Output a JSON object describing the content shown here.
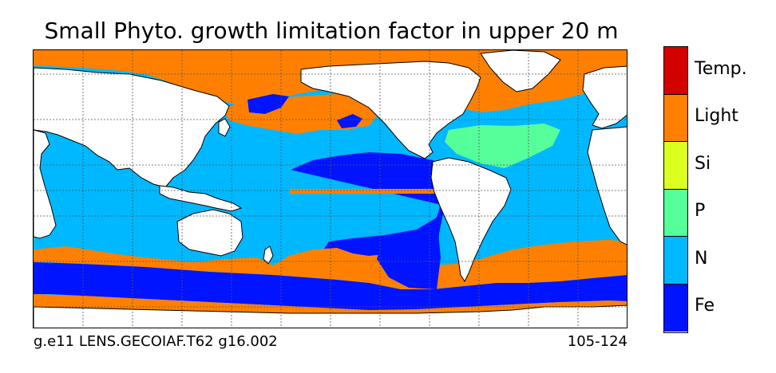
{
  "title": "Small Phyto. growth limitation factor in upper 20 m",
  "footer": {
    "case_name": "g.e11 LENS.GECOIAF.T62 g16.002",
    "years": "105-124"
  },
  "legend": {
    "categories": [
      {
        "label": "Temp.",
        "color": "#d40000"
      },
      {
        "label": "Light",
        "color": "#ff8000"
      },
      {
        "label": "Si",
        "color": "#dcff1f"
      },
      {
        "label": "P",
        "color": "#55ff99"
      },
      {
        "label": "N",
        "color": "#00b8ff"
      },
      {
        "label": "Fe",
        "color": "#0014ff"
      }
    ]
  },
  "colors": {
    "land": "#ffffff",
    "coast": "#000000",
    "grid": "#555555"
  }
}
